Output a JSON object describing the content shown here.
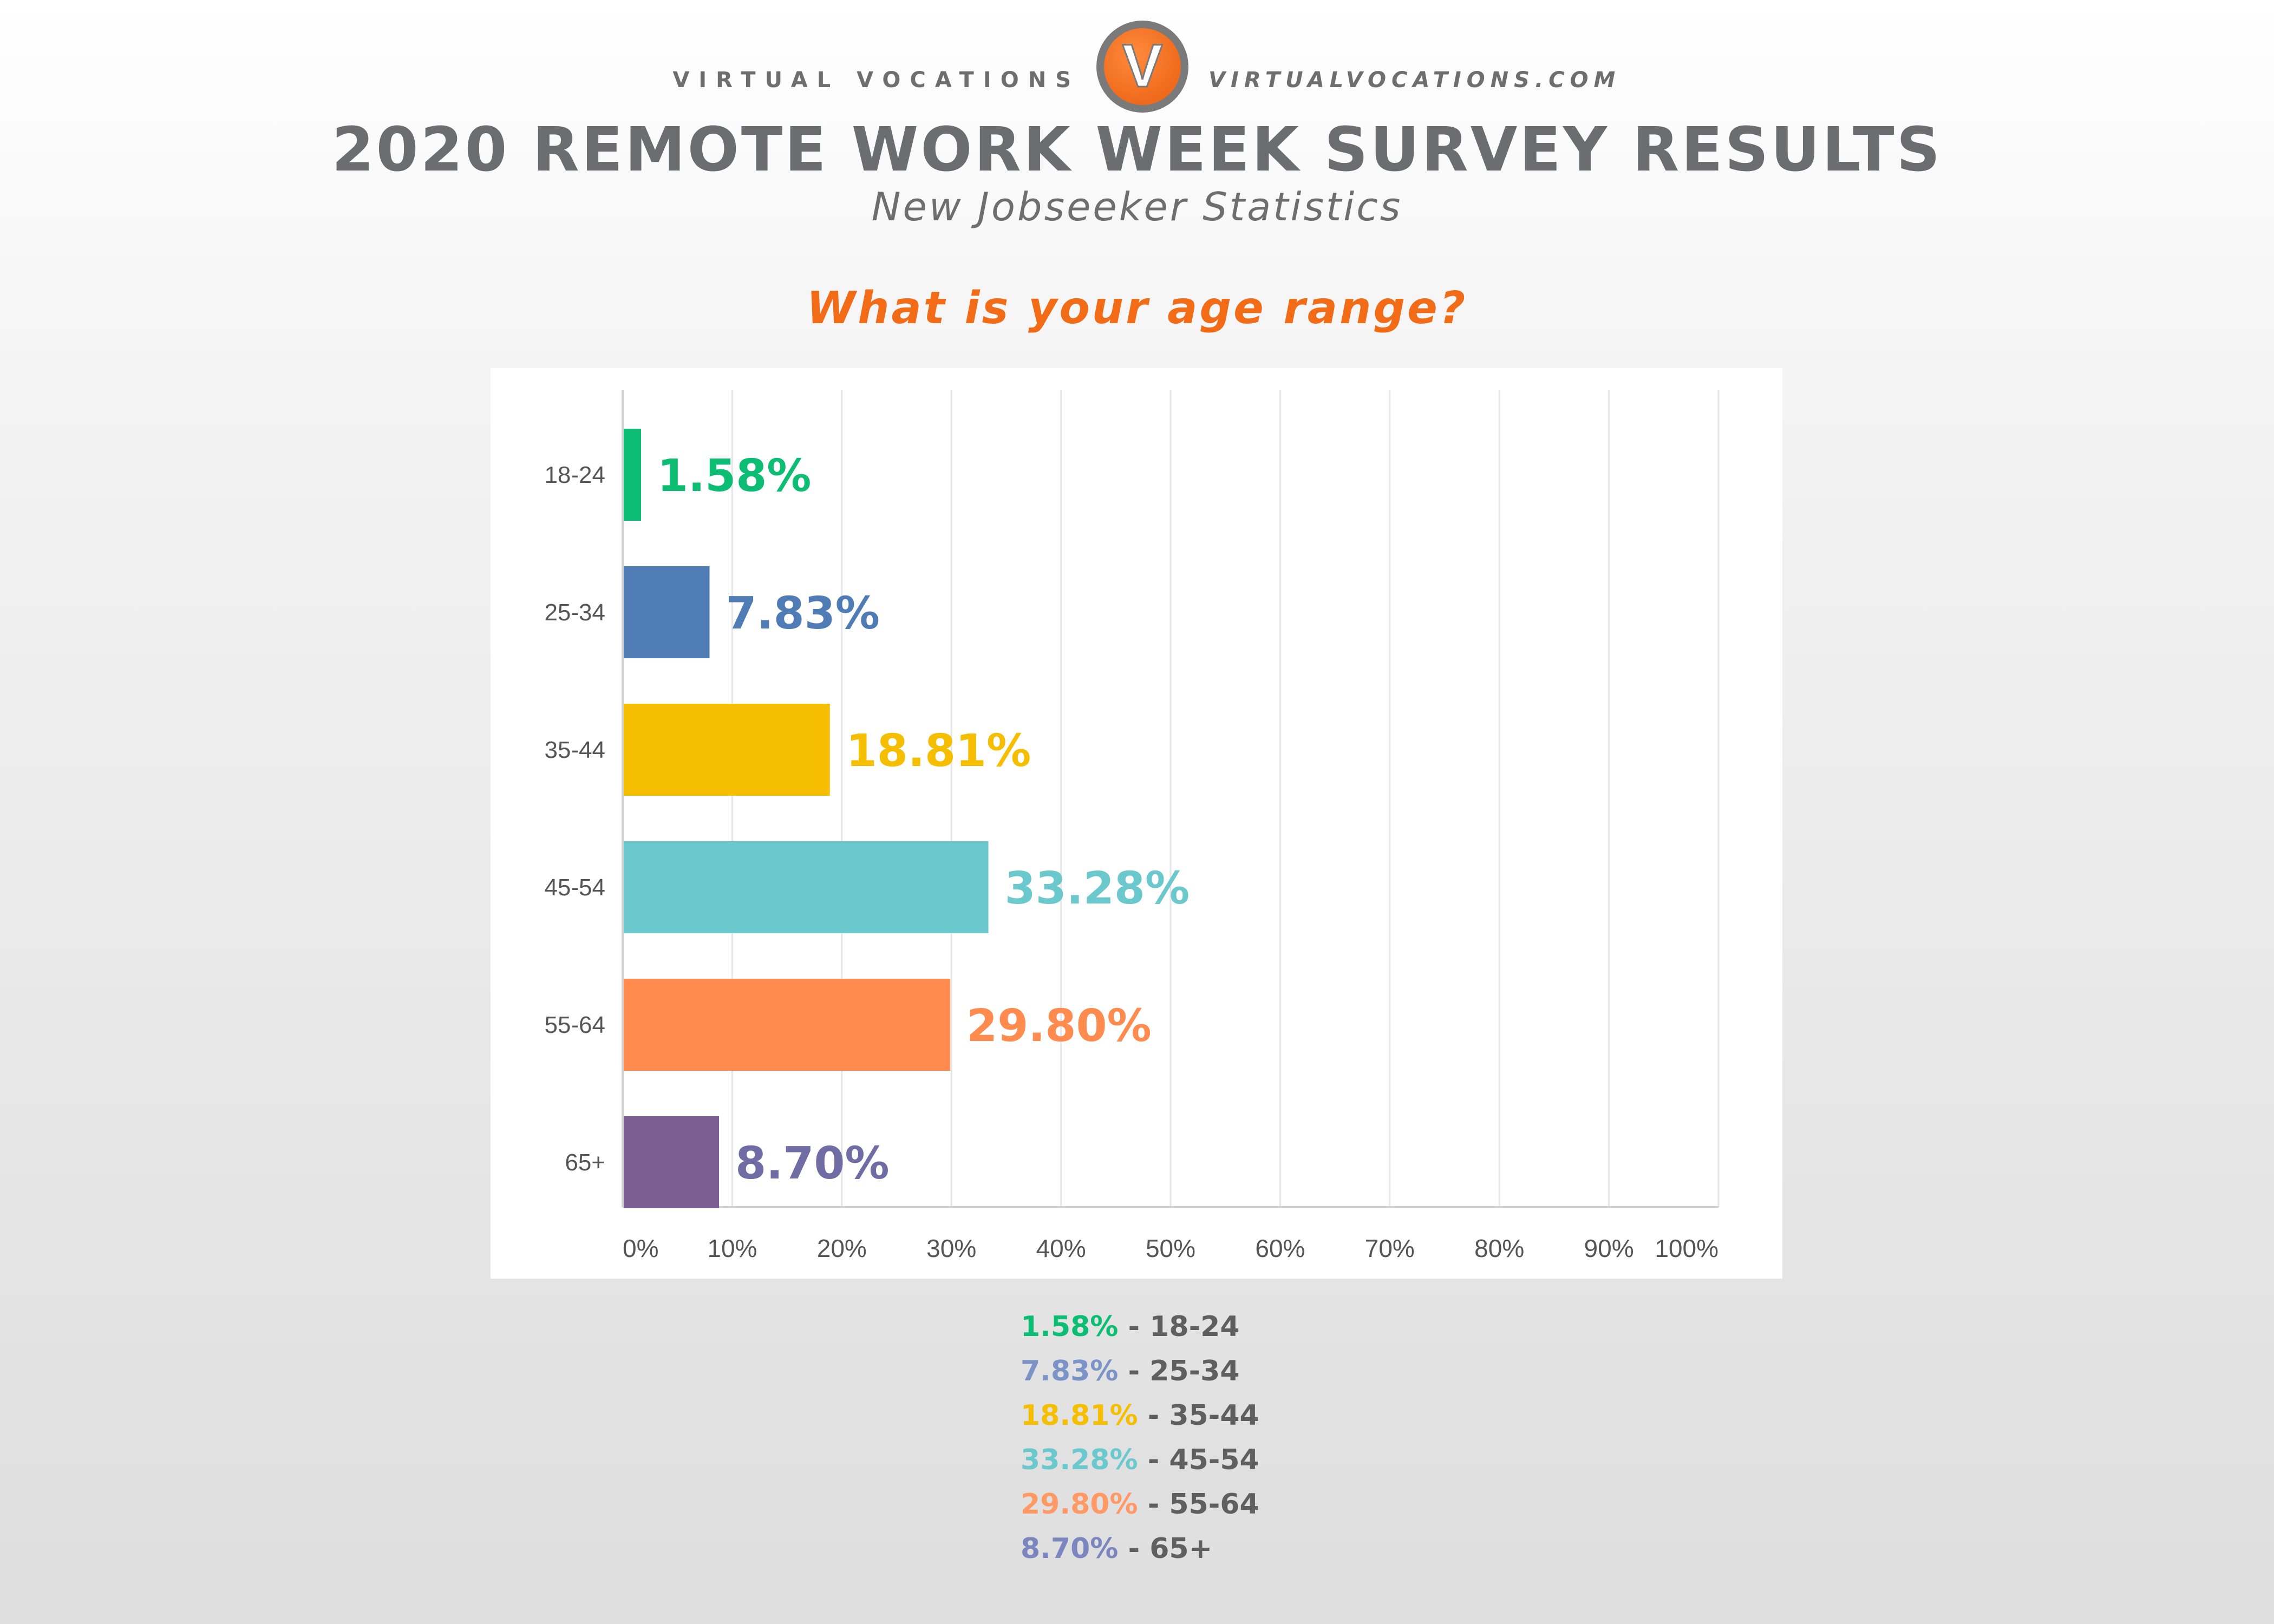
{
  "header": {
    "brand_name": "VIRTUAL VOCATIONS",
    "brand_url": "VIRTUALVOCATIONS.COM",
    "logo_letter": "V",
    "title": "2020 REMOTE WORK WEEK SURVEY RESULTS",
    "subtitle": "New Jobseeker Statistics"
  },
  "question": "What is your age range?",
  "colors": {
    "title": "#6c6d70",
    "question": "#f26b16",
    "grid": "#e6e6e6",
    "axis": "#cfcfcf",
    "tick_text": "#555555"
  },
  "chart_data": {
    "type": "bar",
    "orientation": "horizontal",
    "categories": [
      "18-24",
      "25-34",
      "35-44",
      "45-54",
      "55-64",
      "65+"
    ],
    "values": [
      1.58,
      7.83,
      18.81,
      33.28,
      29.8,
      8.7
    ],
    "value_labels": [
      "1.58%",
      "7.83%",
      "18.81%",
      "33.28%",
      "29.80%",
      "8.70%"
    ],
    "colors": [
      "#0dbd74",
      "#507cb6",
      "#f6be00",
      "#6bc8cd",
      "#ff8b4f",
      "#7d5e93"
    ],
    "label_colors": [
      "#0dbd74",
      "#507cb6",
      "#f6be00",
      "#6bc8cd",
      "#ff8b4f",
      "#6f6da3"
    ],
    "xlim": [
      0,
      100
    ],
    "xticks": [
      0,
      10,
      20,
      30,
      40,
      50,
      60,
      70,
      80,
      90,
      100
    ],
    "xtick_labels": [
      "0%",
      "10%",
      "20%",
      "30%",
      "40%",
      "50%",
      "60%",
      "70%",
      "80%",
      "90%",
      "100%"
    ],
    "grid": true
  },
  "legend": {
    "separator": "-",
    "items": [
      {
        "value": "1.58%",
        "label": "18-24",
        "color": "#0dbd74"
      },
      {
        "value": "7.83%",
        "label": "25-34",
        "color": "#7b93c7"
      },
      {
        "value": "18.81%",
        "label": "35-44",
        "color": "#f6be00"
      },
      {
        "value": "33.28%",
        "label": "45-54",
        "color": "#6bc8cd"
      },
      {
        "value": "29.80%",
        "label": "55-64",
        "color": "#ff9966"
      },
      {
        "value": "8.70%",
        "label": "65+",
        "color": "#7b86bf"
      }
    ]
  }
}
